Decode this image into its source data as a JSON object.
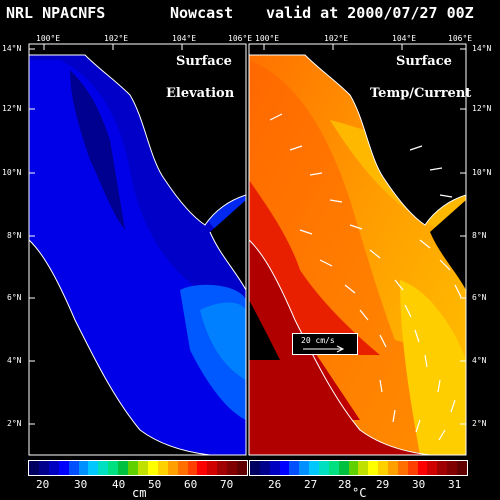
{
  "header": {
    "model": "NRL NPACNFS",
    "mode": "Nowcast",
    "valid": "valid at 2000/07/27 00Z"
  },
  "axes": {
    "lon_labels": [
      "100°E",
      "102°E",
      "104°E",
      "106°E"
    ],
    "lat_labels": [
      "14°N",
      "12°N",
      "10°N",
      "8°N",
      "6°N",
      "4°N",
      "2°N"
    ]
  },
  "panels": {
    "left": {
      "line1": "Surface",
      "line2": "Elevation"
    },
    "right": {
      "line1": "Surface",
      "line2": "Temp/Current"
    }
  },
  "current_scale": {
    "label": "20 cm/s"
  },
  "colorbars": {
    "elevation": {
      "unit": "cm",
      "ticks": [
        "20",
        "30",
        "40",
        "50",
        "60",
        "70"
      ],
      "colors": [
        "#000060",
        "#00008c",
        "#0000c0",
        "#0000ff",
        "#0050ff",
        "#0090ff",
        "#00c8ff",
        "#00e0c0",
        "#00e080",
        "#00c040",
        "#60d000",
        "#c0e000",
        "#ffff00",
        "#ffd000",
        "#ffa000",
        "#ff7000",
        "#ff4000",
        "#ff0000",
        "#d00000",
        "#a00000",
        "#800000",
        "#600000"
      ]
    },
    "temperature": {
      "unit": "°C",
      "ticks": [
        "26",
        "27",
        "28",
        "29",
        "30",
        "31"
      ],
      "colors": [
        "#000060",
        "#00008c",
        "#0000c0",
        "#0000ff",
        "#0050ff",
        "#0090ff",
        "#00c8ff",
        "#00e0c0",
        "#00e080",
        "#00c040",
        "#60d000",
        "#c0e000",
        "#ffff00",
        "#ffd000",
        "#ffa000",
        "#ff7000",
        "#ff4000",
        "#ff0000",
        "#d00000",
        "#a00000",
        "#800000",
        "#600000"
      ]
    }
  }
}
